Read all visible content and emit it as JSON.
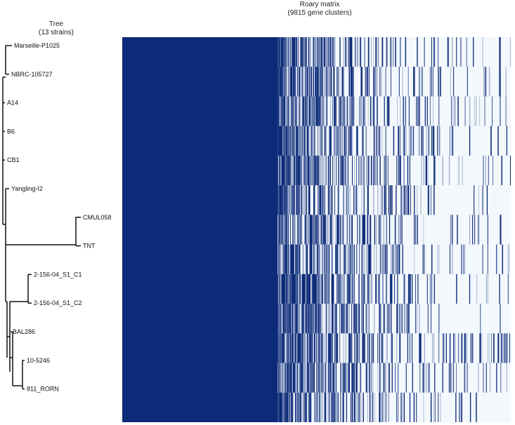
{
  "tree_title": {
    "line1": "Tree",
    "line2": "(13 strains)"
  },
  "matrix_title": {
    "line1": "Roary matrix",
    "line2": "(9815 gene clusters)"
  },
  "chart_data": {
    "type": "heatmap",
    "title": "Roary matrix (9815 gene clusters)",
    "gene_clusters": 9815,
    "strains": [
      "Marseille-P1025",
      "NBRC-105727",
      "A14",
      "B6",
      "CB1",
      "Yangling-I2",
      "CMUL058",
      "TNT",
      "2-156-04_S1_C1",
      "2-156-04_S1_C2",
      "BAL286",
      "10-5246",
      "811_RORN"
    ],
    "core_genome_fraction": 0.4,
    "present_color": "#0c2a78",
    "absent_color": "#f3f8fd",
    "colorbar": false
  },
  "colors": {
    "present": "#0c2a78",
    "absent": "#f3f8fd",
    "tree_line": "#111111"
  }
}
